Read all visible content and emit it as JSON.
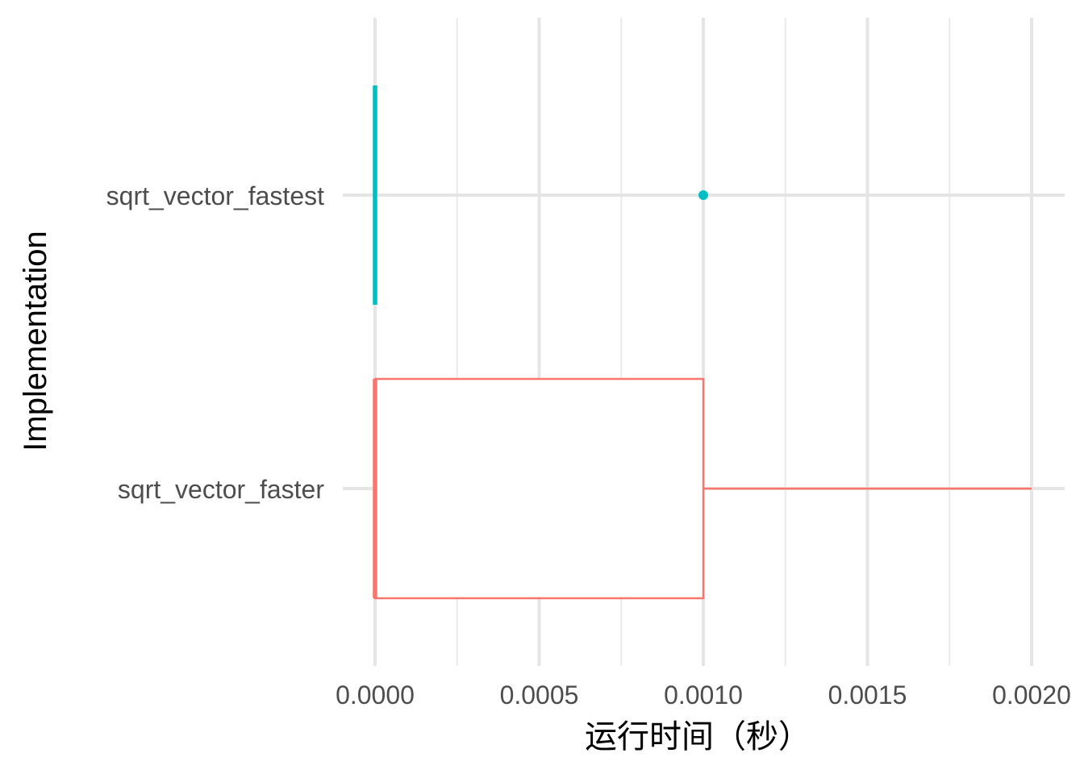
{
  "chart_data": {
    "type": "boxplot",
    "orientation": "horizontal",
    "xlabel": "运行时间（秒）",
    "ylabel": "Implementation",
    "xlim": [
      0.0,
      0.002
    ],
    "x_ticks": [
      "0.0000",
      "0.0005",
      "0.0010",
      "0.0015",
      "0.0020"
    ],
    "x_tick_values": [
      0.0,
      0.0005,
      0.001,
      0.0015,
      0.002
    ],
    "grid": true,
    "legend": "none",
    "categories": [
      "sqrt_vector_fastest",
      "sqrt_vector_faster"
    ],
    "series": [
      {
        "category": "sqrt_vector_fastest",
        "color": "#00BFC4",
        "min": 0.0,
        "q1": 0.0,
        "median": 0.0,
        "q3": 0.0,
        "max": 0.0,
        "outliers": [
          0.001
        ]
      },
      {
        "category": "sqrt_vector_faster",
        "color": "#F8766D",
        "min": 0.0,
        "q1": 0.0,
        "median": 0.0,
        "q3": 0.001,
        "max": 0.002,
        "outliers": []
      }
    ]
  }
}
